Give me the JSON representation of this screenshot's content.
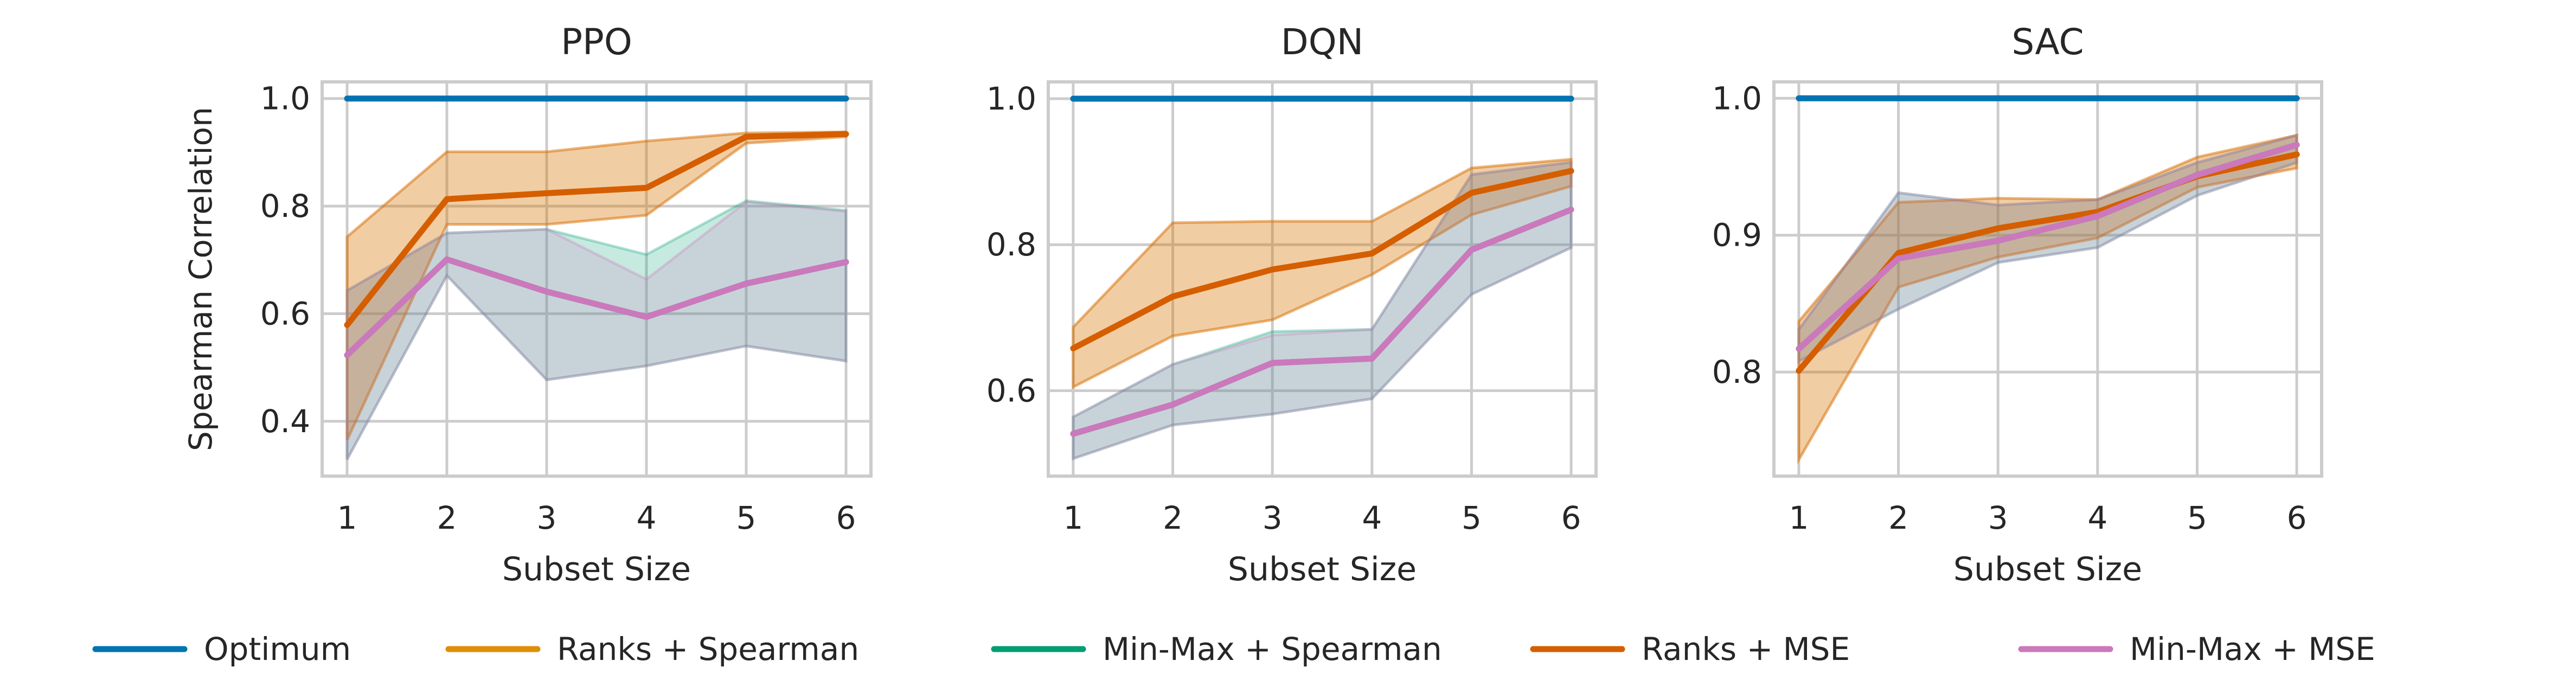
{
  "colors": {
    "Optimum": "#0173b2",
    "Ranks + Spearman": "#de8f05",
    "Min-Max + Spearman": "#029e73",
    "Ranks + MSE": "#d55e00",
    "Min-Max + MSE": "#cc78bc",
    "grid": "#cccccc"
  },
  "legend": {
    "placement": "bottom-center",
    "entries": [
      "Optimum",
      "Ranks + Spearman",
      "Min-Max + Spearman",
      "Ranks + MSE",
      "Min-Max + MSE"
    ]
  },
  "chart_data": [
    {
      "type": "line",
      "title": "PPO",
      "xlabel": "Subset Size",
      "ylabel": "Spearman Correlation",
      "x": [
        1,
        2,
        3,
        4,
        5,
        6
      ],
      "xticks": [
        "1",
        "2",
        "3",
        "4",
        "5",
        "6"
      ],
      "yticks": [
        0.4,
        0.6,
        0.8,
        1.0
      ],
      "ytick_labels": [
        "0.4",
        "0.6",
        "0.8",
        "1.0"
      ],
      "ylim": [
        0.298,
        1.031
      ],
      "grid": true,
      "series": [
        {
          "name": "Optimum",
          "values": [
            1,
            1,
            1,
            1,
            1,
            1
          ]
        },
        {
          "name": "Ranks + Spearman",
          "values": [
            0.579,
            0.813,
            0.824,
            0.834,
            0.929,
            0.934
          ],
          "lower": [
            0.365,
            0.766,
            0.766,
            0.783,
            0.917,
            0.929
          ],
          "upper": [
            0.743,
            0.901,
            0.901,
            0.921,
            0.936,
            0.938
          ]
        },
        {
          "name": "Min-Max + Spearman",
          "values": [
            0.523,
            0.701,
            0.641,
            0.594,
            0.656,
            0.696
          ],
          "lower": [
            0.329,
            0.671,
            0.477,
            0.503,
            0.54,
            0.512
          ],
          "upper": [
            0.643,
            0.75,
            0.757,
            0.71,
            0.81,
            0.792
          ]
        },
        {
          "name": "Ranks + MSE",
          "values": [
            0.579,
            0.813,
            0.824,
            0.834,
            0.929,
            0.934
          ],
          "lower": [
            0.365,
            0.766,
            0.766,
            0.783,
            0.917,
            0.929
          ],
          "upper": [
            0.743,
            0.901,
            0.901,
            0.921,
            0.936,
            0.938
          ]
        },
        {
          "name": "Min-Max + MSE",
          "values": [
            0.523,
            0.701,
            0.641,
            0.594,
            0.656,
            0.696
          ],
          "lower": [
            0.329,
            0.671,
            0.477,
            0.503,
            0.54,
            0.512
          ],
          "upper": [
            0.643,
            0.75,
            0.757,
            0.664,
            0.808,
            0.79
          ]
        }
      ]
    },
    {
      "type": "line",
      "title": "DQN",
      "xlabel": "Subset Size",
      "ylabel": "",
      "x": [
        1,
        2,
        3,
        4,
        5,
        6
      ],
      "xticks": [
        "1",
        "2",
        "3",
        "4",
        "5",
        "6"
      ],
      "yticks": [
        0.6,
        0.8,
        1.0
      ],
      "ytick_labels": [
        "0.6",
        "0.8",
        "1.0"
      ],
      "ylim": [
        0.483,
        1.023
      ],
      "grid": true,
      "series": [
        {
          "name": "Optimum",
          "values": [
            1,
            1,
            1,
            1,
            1,
            1
          ]
        },
        {
          "name": "Ranks + Spearman",
          "values": [
            0.658,
            0.729,
            0.766,
            0.788,
            0.871,
            0.901
          ],
          "lower": [
            0.605,
            0.675,
            0.697,
            0.759,
            0.841,
            0.88
          ],
          "upper": [
            0.687,
            0.83,
            0.832,
            0.832,
            0.905,
            0.917
          ]
        },
        {
          "name": "Min-Max + Spearman",
          "values": [
            0.541,
            0.581,
            0.638,
            0.644,
            0.793,
            0.848
          ],
          "lower": [
            0.507,
            0.553,
            0.568,
            0.589,
            0.732,
            0.796
          ],
          "upper": [
            0.564,
            0.636,
            0.681,
            0.684,
            0.896,
            0.913
          ]
        },
        {
          "name": "Ranks + MSE",
          "values": [
            0.658,
            0.729,
            0.766,
            0.788,
            0.871,
            0.901
          ],
          "lower": [
            0.605,
            0.675,
            0.697,
            0.759,
            0.841,
            0.88
          ],
          "upper": [
            0.687,
            0.83,
            0.832,
            0.832,
            0.905,
            0.917
          ]
        },
        {
          "name": "Min-Max + MSE",
          "values": [
            0.541,
            0.581,
            0.638,
            0.644,
            0.793,
            0.848
          ],
          "lower": [
            0.507,
            0.553,
            0.568,
            0.589,
            0.732,
            0.796
          ],
          "upper": [
            0.564,
            0.636,
            0.676,
            0.684,
            0.896,
            0.913
          ]
        }
      ]
    },
    {
      "type": "line",
      "title": "SAC",
      "xlabel": "Subset Size",
      "ylabel": "",
      "x": [
        1,
        2,
        3,
        4,
        5,
        6
      ],
      "xticks": [
        "1",
        "2",
        "3",
        "4",
        "5",
        "6"
      ],
      "yticks": [
        0.8,
        0.9,
        1.0
      ],
      "ytick_labels": [
        "0.8",
        "0.9",
        "1.0"
      ],
      "ylim": [
        0.724,
        1.012
      ],
      "grid": true,
      "series": [
        {
          "name": "Optimum",
          "values": [
            1,
            1,
            1,
            1,
            1,
            1
          ]
        },
        {
          "name": "Ranks + Spearman",
          "values": [
            0.801,
            0.887,
            0.905,
            0.917,
            0.943,
            0.959
          ],
          "lower": [
            0.736,
            0.862,
            0.884,
            0.898,
            0.935,
            0.949
          ],
          "upper": [
            0.837,
            0.924,
            0.927,
            0.926,
            0.957,
            0.973
          ]
        },
        {
          "name": "Min-Max + Spearman",
          "values": [
            0.817,
            0.883,
            0.896,
            0.914,
            0.944,
            0.966
          ],
          "lower": [
            0.808,
            0.846,
            0.88,
            0.891,
            0.929,
            0.953
          ],
          "upper": [
            0.831,
            0.931,
            0.922,
            0.926,
            0.953,
            0.973
          ]
        },
        {
          "name": "Ranks + MSE",
          "values": [
            0.801,
            0.887,
            0.905,
            0.917,
            0.943,
            0.959
          ],
          "lower": [
            0.736,
            0.862,
            0.884,
            0.898,
            0.935,
            0.949
          ],
          "upper": [
            0.837,
            0.924,
            0.927,
            0.926,
            0.957,
            0.973
          ]
        },
        {
          "name": "Min-Max + MSE",
          "values": [
            0.817,
            0.883,
            0.896,
            0.914,
            0.944,
            0.966
          ],
          "lower": [
            0.808,
            0.846,
            0.88,
            0.891,
            0.929,
            0.953
          ],
          "upper": [
            0.831,
            0.931,
            0.922,
            0.926,
            0.953,
            0.973
          ]
        }
      ]
    }
  ]
}
